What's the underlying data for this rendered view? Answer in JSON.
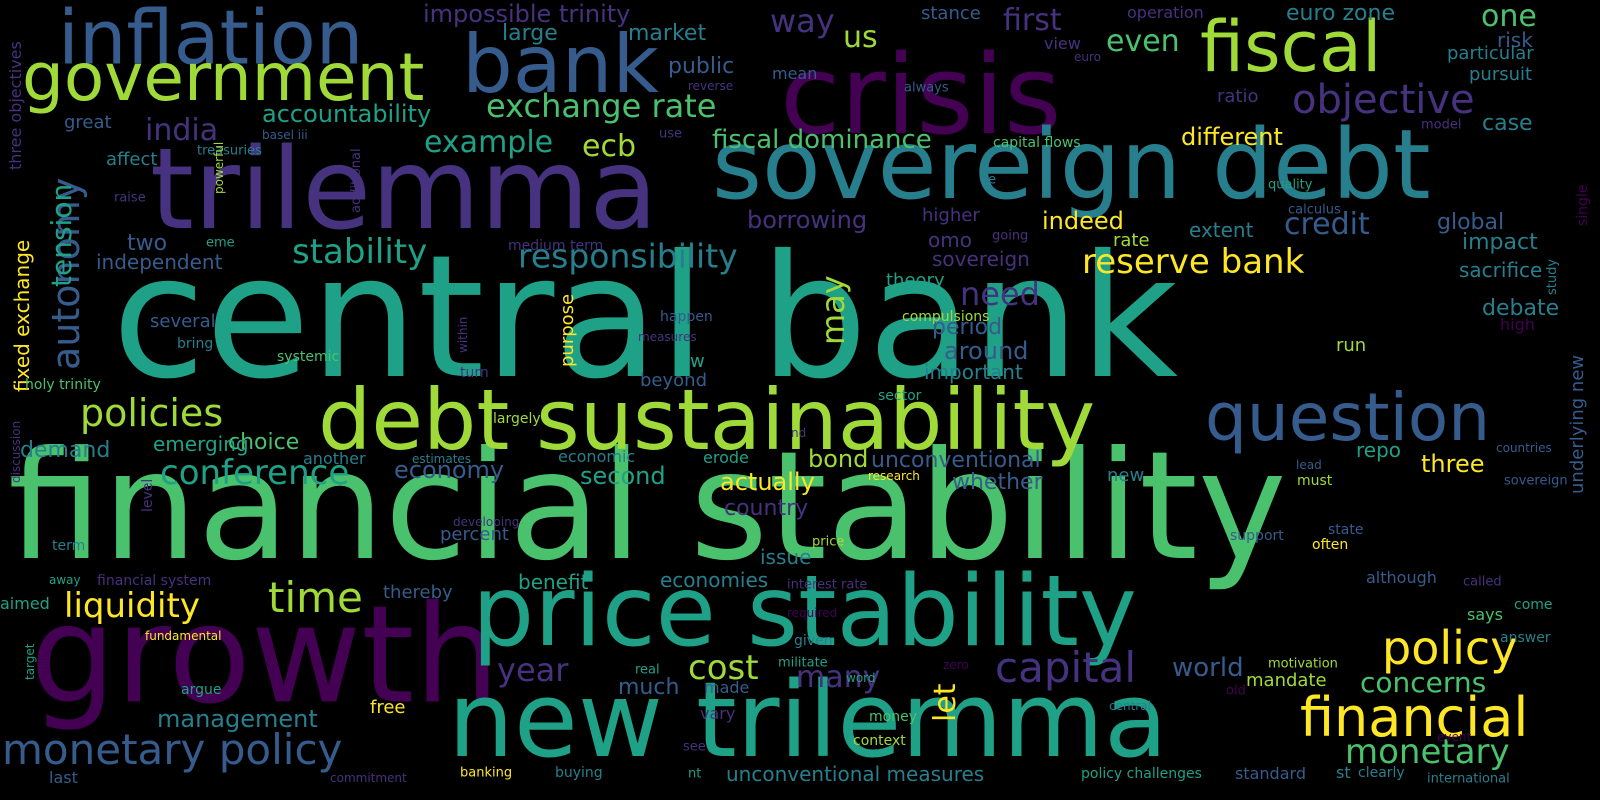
{
  "colors": {
    "background": "#000000",
    "palette": [
      "#440154",
      "#46327e",
      "#365c8d",
      "#277f8e",
      "#1fa187",
      "#4ac16d",
      "#a0da39",
      "#fde725"
    ]
  },
  "words": [
    "central bank",
    "financial stability",
    "growth",
    "crisis",
    "trilemma",
    "sovereign debt",
    "new trilemma",
    "price stability",
    "debt sustainability",
    "bank",
    "inflation",
    "government",
    "fiscal",
    "question",
    "financial",
    "policy",
    "capital",
    "monetary policy",
    "monetary",
    "objective",
    "reserve bank",
    "stability",
    "policies",
    "responsibility",
    "exchange rate",
    "autonomy",
    "time",
    "liquidity",
    "conference",
    "need",
    "cost",
    "year",
    "concerns",
    "fiscal dominance",
    "credit",
    "economy",
    "many",
    "let",
    "first",
    "even",
    "one",
    "way",
    "us",
    "ecb",
    "example",
    "accountability",
    "india",
    "tension",
    "management",
    "world",
    "borrowing",
    "may",
    "impossible trinity",
    "euro zone",
    "large",
    "market",
    "public",
    "indeed",
    "different",
    "three",
    "unconventional",
    "unconventional measures",
    "second",
    "actually",
    "bond",
    "whether",
    "country",
    "much",
    "mandate",
    "global",
    "debate",
    "impact",
    "sacrifice",
    "case",
    "risk",
    "particular",
    "pursuit",
    "choice",
    "demand",
    "emerging",
    "two",
    "independent",
    "around",
    "period",
    "important",
    "sovereign",
    "theory",
    "omo",
    "higher",
    "extent",
    "rate",
    "purpose",
    "fixed exchange",
    "holy trinity",
    "economies",
    "issue",
    "benefit",
    "percent",
    "thereby",
    "free",
    "aimed",
    "repo",
    "run",
    "says",
    "although",
    "low",
    "beyond",
    "another",
    "economic",
    "erode",
    "new",
    "must",
    "lead",
    "often",
    "underlying new",
    "single",
    "quality",
    "calculus",
    "study",
    "high",
    "countries",
    "sovereign",
    "state",
    "support",
    "called",
    "answer",
    "come",
    "motivation",
    "old",
    "event",
    "international",
    "standard",
    "st",
    "clearly",
    "policy challenges",
    "central",
    "context",
    "money",
    "word",
    "militate",
    "given",
    "required",
    "zero",
    "real",
    "made",
    "vary",
    "see",
    "nt",
    "buying",
    "banking",
    "commitment",
    "last",
    "target",
    "argue",
    "fundamental",
    "financial system",
    "away",
    "term",
    "developing",
    "price",
    "interest rate",
    "research",
    "estimates",
    "level",
    "discussion",
    "largely",
    "nd",
    "sector",
    "several",
    "bring",
    "systemic",
    "happen",
    "measures",
    "within",
    "turn",
    "compulsions",
    "going",
    "medium term",
    "basel iii",
    "treasuries",
    "affect",
    "great",
    "mean",
    "stance",
    "operation",
    "view",
    "euro",
    "always",
    "reverse",
    "use",
    "additional",
    "powerful",
    "raise",
    "eme",
    "three objectives",
    "capital flows",
    "ratio",
    "ce",
    "model"
  ]
}
